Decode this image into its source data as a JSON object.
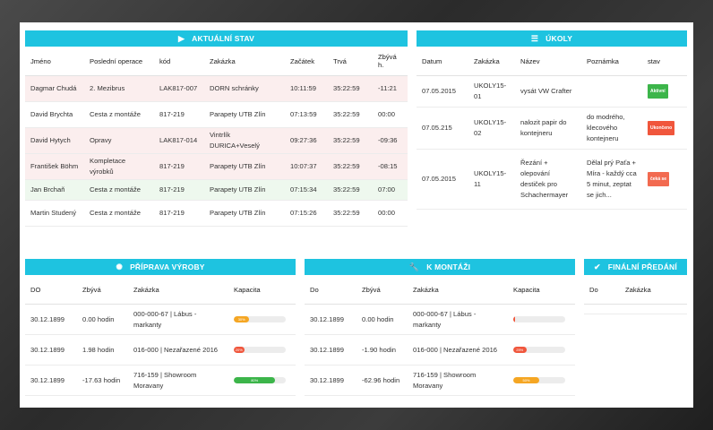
{
  "colors": {
    "header": "#1ec3e0",
    "active": "#3cb54a",
    "done": "#f0563c",
    "waiting": "#f26a50",
    "orange": "#f5a623",
    "red": "#f0563c",
    "green": "#3cb54a"
  },
  "aktualni": {
    "title": "AKTUÁLNÍ STAV",
    "icon": "play-icon",
    "headers": [
      "Jméno",
      "Poslední operace",
      "kód",
      "Zakázka",
      "Začátek",
      "Trvá",
      "Zbývá h."
    ],
    "rows": [
      {
        "name": "Dagmar Chudá",
        "op": "2. Mezibrus",
        "code": "LAK817-007",
        "order": "DORN schránky",
        "start": "10:11:59",
        "dur": "35:22:59",
        "left": "-11:21",
        "state": "red"
      },
      {
        "name": "David Brychta",
        "op": "Cesta z montáže",
        "code": "817-219",
        "order": "Parapety UTB Zlín",
        "start": "07:13:59",
        "dur": "35:22:59",
        "left": "00:00",
        "state": ""
      },
      {
        "name": "David Hytych",
        "op": "Opravy",
        "code": "LAK817-014",
        "order": "Vintrlík DURICA+Veselý",
        "start": "09:27:36",
        "dur": "35:22:59",
        "left": "-09:36",
        "state": "red"
      },
      {
        "name": "František Böhm",
        "op": "Kompletace výrobků",
        "code": "817-219",
        "order": "Parapety UTB Zlín",
        "start": "10:07:37",
        "dur": "35:22:59",
        "left": "-08:15",
        "state": "red"
      },
      {
        "name": "Jan Brchaň",
        "op": "Cesta z montáže",
        "code": "817-219",
        "order": "Parapety UTB Zlín",
        "start": "07:15:34",
        "dur": "35:22:59",
        "left": "07:00",
        "state": "green"
      },
      {
        "name": "Martin Studený",
        "op": "Cesta z montáže",
        "code": "817-219",
        "order": "Parapety UTB Zlín",
        "start": "07:15:26",
        "dur": "35:22:59",
        "left": "00:00",
        "state": ""
      }
    ]
  },
  "ukoly": {
    "title": "ÚKOLY",
    "icon": "list-icon",
    "headers": [
      "Datum",
      "Zakázka",
      "Název",
      "Poznámka",
      "stav"
    ],
    "rows": [
      {
        "date": "07.05.2015",
        "order": "UKOLY15-01",
        "name": "vysát VW Crafter",
        "note": "",
        "status": "Aktivní",
        "color": "#3cb54a"
      },
      {
        "date": "07.05.215",
        "order": "UKOLY15-02",
        "name": "nalozit papir do kontejneru",
        "note": "do modrého, klecového kontejneru",
        "status": "Ukončeno",
        "color": "#f0563c"
      },
      {
        "date": "07.05.2015",
        "order": "UKOLY15-11",
        "name": "Řezání + olepování destiček pro Schachermayer",
        "note": "Dělal prý Paťa + Míra - každý cca 5 minut, zeptat se jich...",
        "status": "čeká se",
        "color": "#f26a50"
      }
    ]
  },
  "priprava": {
    "title": "PŘÍPRAVA VÝROBY",
    "icon": "spinner-icon",
    "headers": [
      "DO",
      "Zbývá",
      "Zakázka",
      "Kapacita"
    ],
    "rows": [
      {
        "do": "30.12.1899",
        "left": "0.00 hodin",
        "order": "000-000-67 | Lábus - markanty",
        "cap": 30,
        "cap_label": "30%",
        "color": "#f5a623"
      },
      {
        "do": "30.12.1899",
        "left": "1.98 hodin",
        "order": "016-000 | Nezařazené 2016",
        "cap": 20,
        "cap_label": "20%",
        "color": "#f0563c"
      },
      {
        "do": "30.12.1899",
        "left": "-17.63 hodin",
        "order": "716-159 | Showroom Moravany",
        "cap": 80,
        "cap_label": "80%",
        "color": "#3cb54a"
      }
    ]
  },
  "montaz": {
    "title": "K MONTÁŽI",
    "icon": "wrench-icon",
    "headers": [
      "Do",
      "Zbývá",
      "Zakázka",
      "Kapacita"
    ],
    "rows": [
      {
        "do": "30.12.1899",
        "left": "0.00 hodin",
        "order": "000-000-67 | Lábus - markanty",
        "cap": 3,
        "cap_label": "",
        "color": "#f0563c"
      },
      {
        "do": "30.12.1899",
        "left": "-1.90 hodin",
        "order": "016-000 | Nezařazené 2016",
        "cap": 25,
        "cap_label": "25%",
        "color": "#f0563c"
      },
      {
        "do": "30.12.1899",
        "left": "-62.96 hodin",
        "order": "716-159 | Showroom Moravany",
        "cap": 50,
        "cap_label": "50%",
        "color": "#f5a623"
      }
    ]
  },
  "predani": {
    "title": "FINÁLNÍ PŘEDÁNÍ",
    "icon": "check-icon",
    "headers": [
      "Do",
      "Zakázka"
    ]
  }
}
